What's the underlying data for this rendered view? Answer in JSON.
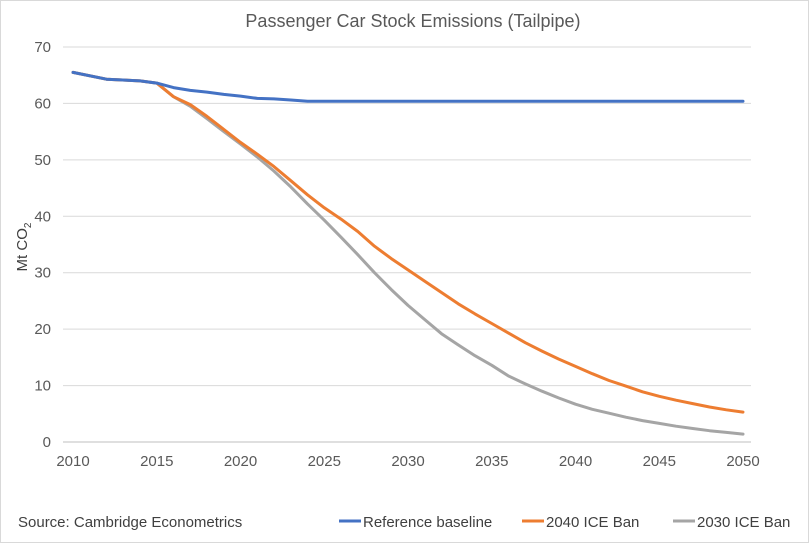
{
  "chart_data": {
    "type": "line",
    "title": "Passenger Car Stock Emissions (Tailpipe)",
    "ylabel_main": "Mt CO",
    "ylabel_sub": "2",
    "xlabel": "",
    "xlim": [
      2010,
      2050
    ],
    "ylim": [
      0,
      70
    ],
    "xticks": [
      2010,
      2015,
      2020,
      2025,
      2030,
      2035,
      2040,
      2045,
      2050
    ],
    "yticks": [
      0,
      10,
      20,
      30,
      40,
      50,
      60,
      70
    ],
    "grid": "horizontal",
    "legend_position": "bottom-right",
    "source": "Source: Cambridge Econometrics",
    "series": [
      {
        "name": "Reference baseline",
        "color": "#4472c4",
        "x": [
          2010,
          2012,
          2014,
          2015,
          2016,
          2017,
          2018,
          2019,
          2020,
          2021,
          2022,
          2023,
          2024,
          2026,
          2030,
          2035,
          2040,
          2045,
          2050
        ],
        "y": [
          65.5,
          64.3,
          64.0,
          63.6,
          62.8,
          62.3,
          62.0,
          61.6,
          61.3,
          60.9,
          60.8,
          60.6,
          60.4,
          60.4,
          60.4,
          60.4,
          60.4,
          60.4,
          60.4
        ]
      },
      {
        "name": "2040 ICE Ban",
        "color": "#ed7d31",
        "x": [
          2010,
          2012,
          2014,
          2015,
          2016,
          2017,
          2018,
          2019,
          2020,
          2021,
          2022,
          2023,
          2024,
          2025,
          2026,
          2027,
          2028,
          2029,
          2030,
          2031,
          2032,
          2033,
          2034,
          2035,
          2036,
          2037,
          2038,
          2039,
          2040,
          2041,
          2042,
          2043,
          2044,
          2045,
          2046,
          2047,
          2048,
          2049,
          2050
        ],
        "y": [
          65.5,
          64.3,
          64.0,
          63.6,
          61.2,
          59.8,
          57.7,
          55.4,
          53.1,
          51.0,
          48.8,
          46.3,
          43.8,
          41.5,
          39.5,
          37.3,
          34.7,
          32.5,
          30.5,
          28.5,
          26.5,
          24.5,
          22.7,
          21.0,
          19.3,
          17.6,
          16.1,
          14.7,
          13.4,
          12.1,
          10.9,
          9.9,
          8.9,
          8.1,
          7.4,
          6.8,
          6.2,
          5.7,
          5.3
        ]
      },
      {
        "name": "2030 ICE Ban",
        "color": "#a5a5a5",
        "x": [
          2010,
          2012,
          2014,
          2015,
          2016,
          2017,
          2018,
          2019,
          2020,
          2021,
          2022,
          2023,
          2024,
          2025,
          2026,
          2027,
          2028,
          2029,
          2030,
          2031,
          2032,
          2033,
          2034,
          2035,
          2036,
          2037,
          2038,
          2039,
          2040,
          2041,
          2042,
          2043,
          2044,
          2045,
          2046,
          2047,
          2048,
          2049,
          2050
        ],
        "y": [
          65.5,
          64.3,
          64.0,
          63.6,
          61.2,
          59.5,
          57.3,
          55.0,
          52.8,
          50.5,
          48.0,
          45.2,
          42.2,
          39.3,
          36.3,
          33.2,
          30.0,
          27.0,
          24.2,
          21.7,
          19.2,
          17.2,
          15.3,
          13.6,
          11.7,
          10.3,
          9.0,
          7.8,
          6.7,
          5.8,
          5.1,
          4.4,
          3.8,
          3.3,
          2.8,
          2.4,
          2.0,
          1.7,
          1.4
        ]
      }
    ]
  }
}
